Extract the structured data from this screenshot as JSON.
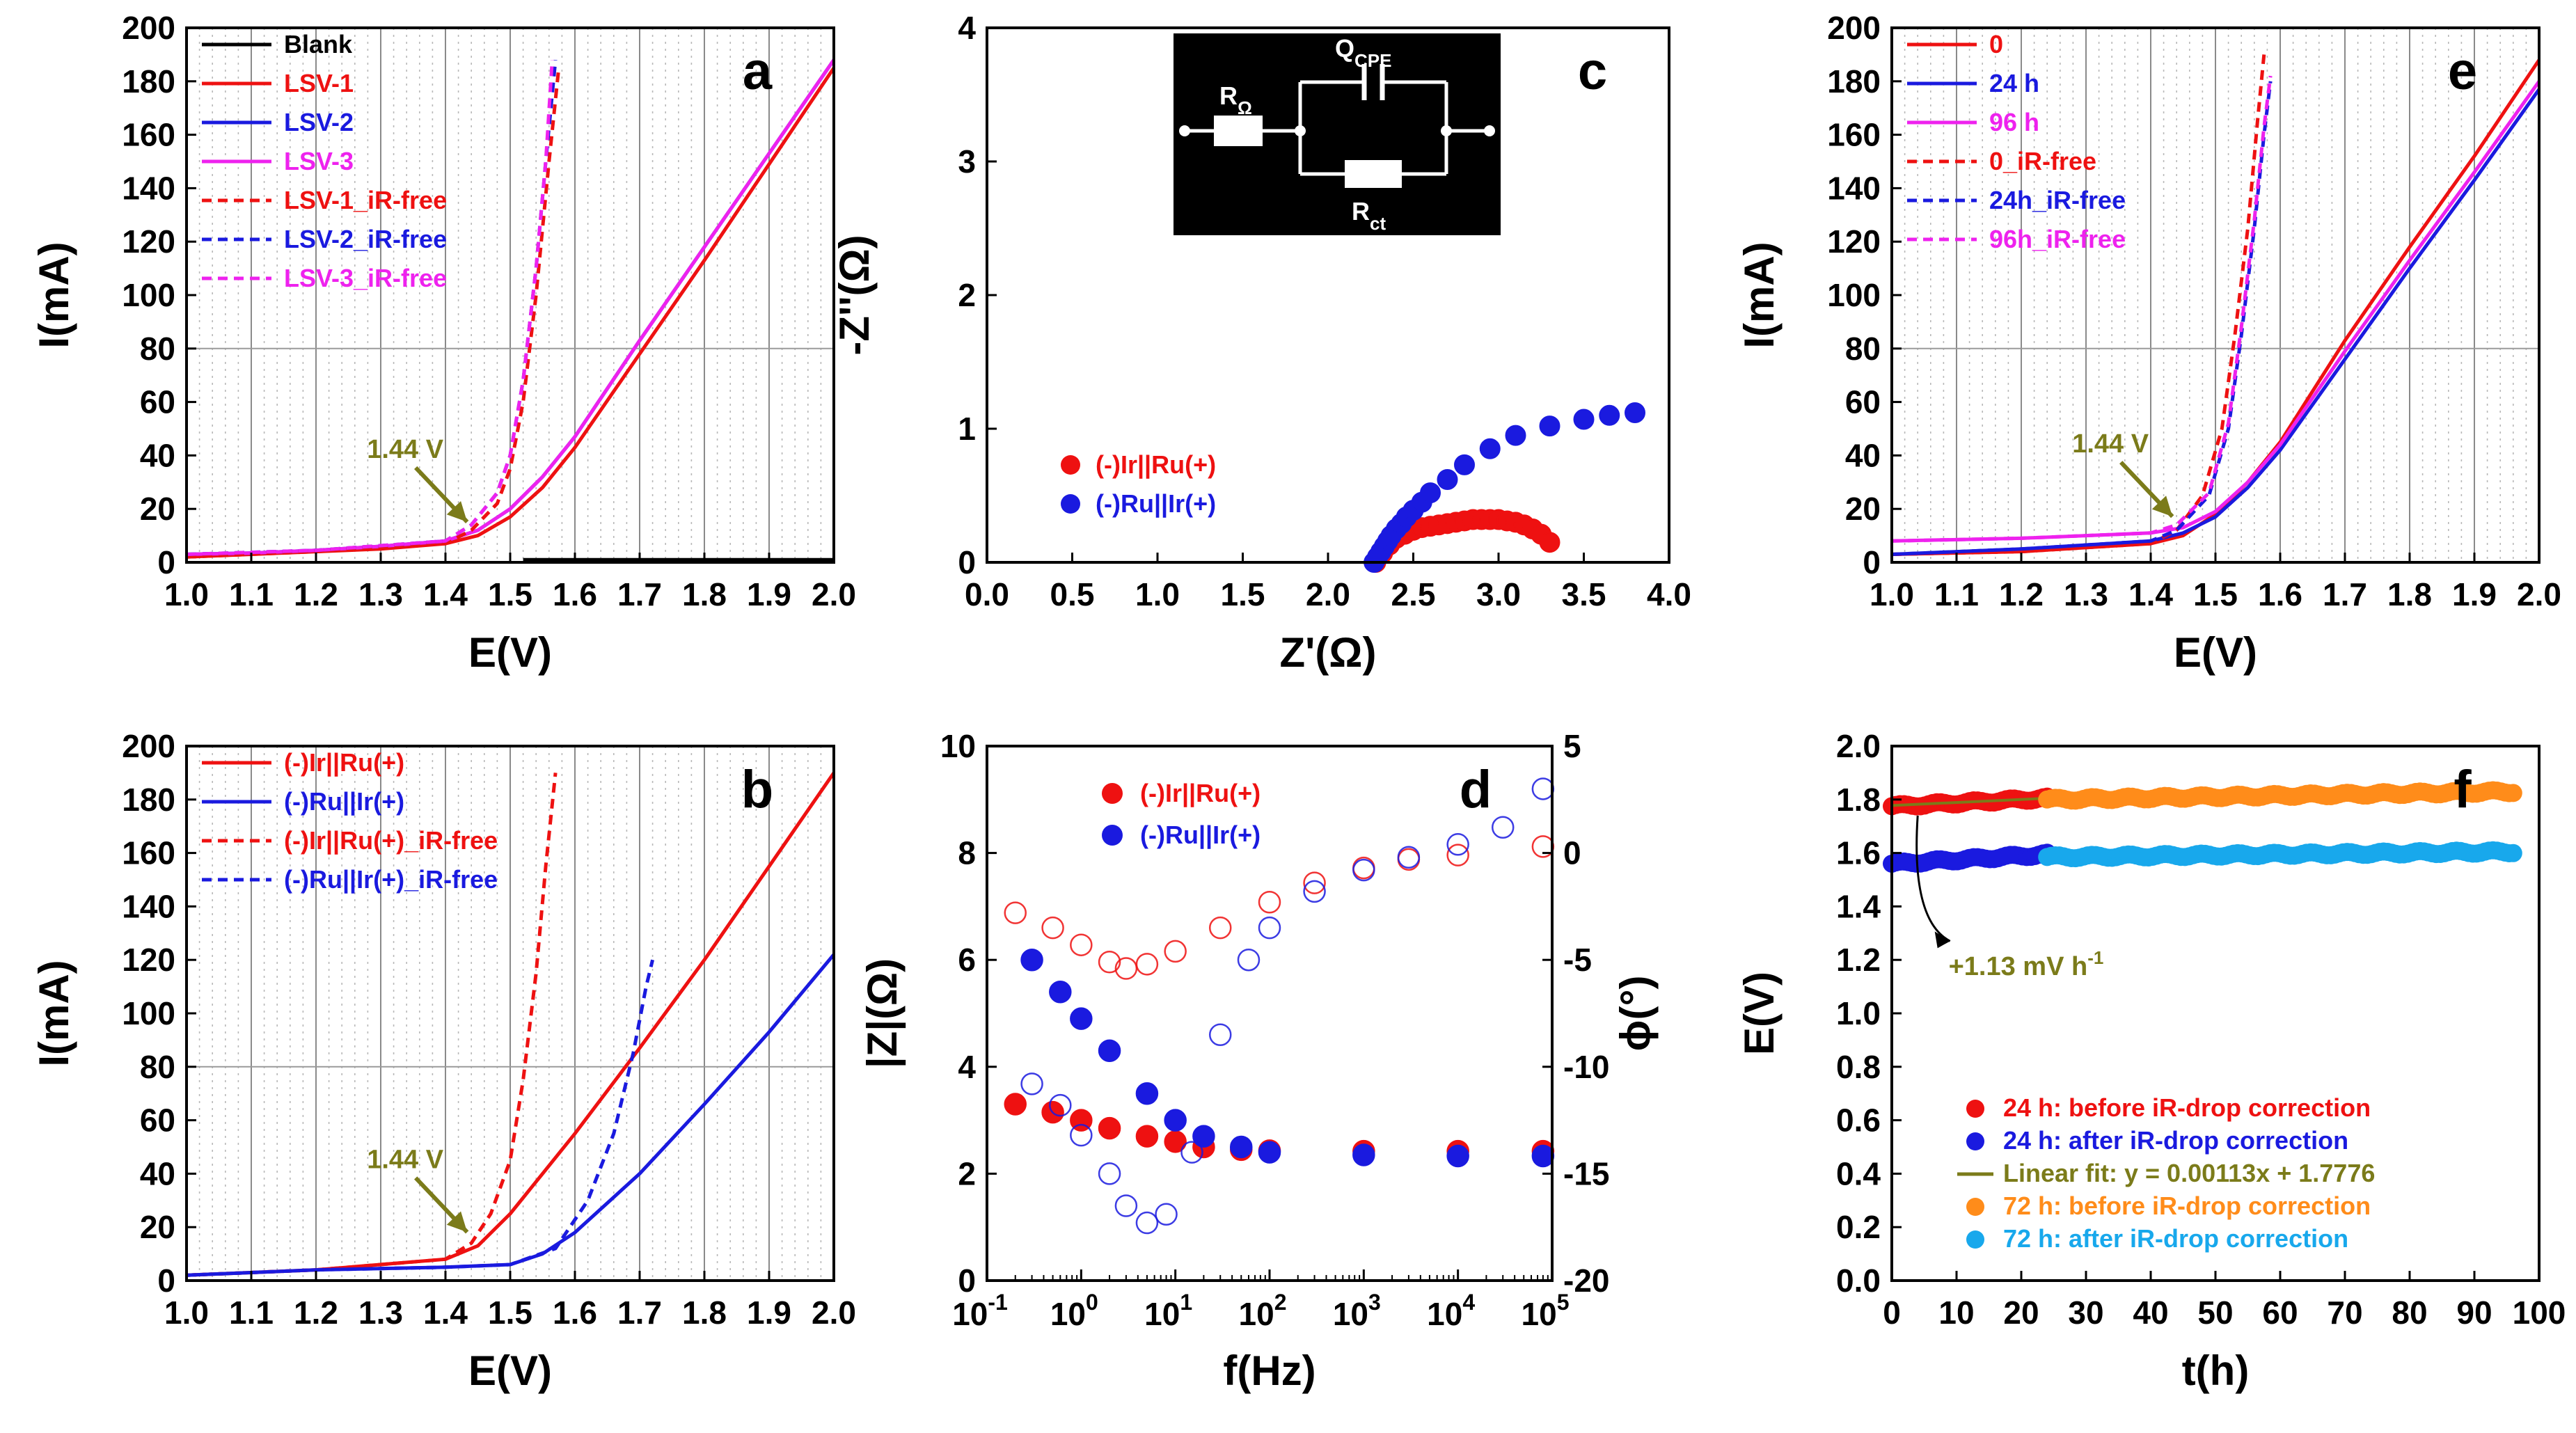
{
  "figure": "Six-panel electrochemistry figure (a-f)",
  "colors": {
    "red": "#ee1111",
    "blue": "#1a1adf",
    "magenta": "#ee22ee",
    "black": "#000000",
    "olive": "#7b7b1a",
    "orange": "#ff8c1a",
    "lightblue": "#18a8ec"
  },
  "chart_data": [
    {
      "id": "a",
      "type": "line",
      "panel_label": "a",
      "xlabel": "E(V)",
      "ylabel": "I(mA)",
      "xlim": [
        1.0,
        2.0
      ],
      "ylim": [
        0,
        200
      ],
      "xticks": [
        "1.0",
        "1.1",
        "1.2",
        "1.3",
        "1.4",
        "1.5",
        "1.6",
        "1.7",
        "1.8",
        "1.9",
        "2.0"
      ],
      "yticks": [
        "0",
        "20",
        "40",
        "60",
        "80",
        "100",
        "120",
        "140",
        "160",
        "180",
        "200"
      ],
      "legend_placement": "top-left",
      "annotation": {
        "text": "1.44 V",
        "x": 1.44,
        "y": 12
      },
      "series": [
        {
          "name": "Blank",
          "color": "#000000",
          "dash": false,
          "x": [
            1.52,
            2.0
          ],
          "y": [
            1,
            1
          ]
        },
        {
          "name": "LSV-1",
          "color": "#ee1111",
          "dash": false,
          "x": [
            1.0,
            1.1,
            1.2,
            1.3,
            1.4,
            1.45,
            1.5,
            1.55,
            1.6,
            1.7,
            1.8,
            1.9,
            2.0
          ],
          "y": [
            2,
            3,
            4,
            5,
            7,
            10,
            17,
            28,
            43,
            78,
            113,
            149,
            185
          ]
        },
        {
          "name": "LSV-2",
          "color": "#1a1adf",
          "dash": false,
          "x": [
            1.0,
            1.1,
            1.2,
            1.3,
            1.4,
            1.45,
            1.5,
            1.55,
            1.6,
            1.7,
            1.8,
            1.9,
            2.0
          ],
          "y": [
            3,
            3.5,
            4.5,
            6,
            8,
            12,
            20,
            32,
            47,
            83,
            118,
            153,
            188
          ]
        },
        {
          "name": "LSV-3",
          "color": "#ee22ee",
          "dash": false,
          "x": [
            1.0,
            1.1,
            1.2,
            1.3,
            1.4,
            1.45,
            1.5,
            1.55,
            1.6,
            1.7,
            1.8,
            1.9,
            2.0
          ],
          "y": [
            3,
            3.5,
            4.5,
            6,
            8,
            12,
            20,
            32,
            47,
            83,
            118,
            153,
            188
          ]
        },
        {
          "name": "LSV-1_iR-free",
          "color": "#ee1111",
          "dash": true,
          "x": [
            1.0,
            1.2,
            1.4,
            1.44,
            1.48,
            1.5,
            1.52,
            1.54,
            1.56,
            1.575
          ],
          "y": [
            2,
            4,
            7,
            12,
            22,
            35,
            60,
            100,
            150,
            185
          ]
        },
        {
          "name": "LSV-2_iR-free",
          "color": "#1a1adf",
          "dash": true,
          "x": [
            1.0,
            1.2,
            1.4,
            1.44,
            1.48,
            1.5,
            1.52,
            1.54,
            1.555,
            1.57
          ],
          "y": [
            3,
            4.5,
            8,
            14,
            26,
            40,
            68,
            110,
            150,
            188
          ]
        },
        {
          "name": "LSV-3_iR-free",
          "color": "#ee22ee",
          "dash": true,
          "x": [
            1.0,
            1.2,
            1.4,
            1.44,
            1.48,
            1.5,
            1.52,
            1.54,
            1.555,
            1.565
          ],
          "y": [
            3,
            4.5,
            8,
            14,
            26,
            40,
            68,
            110,
            150,
            188
          ]
        }
      ]
    },
    {
      "id": "b",
      "type": "line",
      "panel_label": "b",
      "xlabel": "E(V)",
      "ylabel": "I(mA)",
      "xlim": [
        1.0,
        2.0
      ],
      "ylim": [
        0,
        200
      ],
      "xticks": [
        "1.0",
        "1.1",
        "1.2",
        "1.3",
        "1.4",
        "1.5",
        "1.6",
        "1.7",
        "1.8",
        "1.9",
        "2.0"
      ],
      "yticks": [
        "0",
        "20",
        "40",
        "60",
        "80",
        "100",
        "120",
        "140",
        "160",
        "180",
        "200"
      ],
      "legend_placement": "top-left",
      "annotation": {
        "text": "1.44 V",
        "x": 1.44,
        "y": 15
      },
      "series": [
        {
          "name": "(-)Ir||Ru(+)",
          "color": "#ee1111",
          "dash": false,
          "x": [
            1.0,
            1.2,
            1.4,
            1.45,
            1.5,
            1.55,
            1.6,
            1.7,
            1.8,
            1.9,
            2.0
          ],
          "y": [
            2,
            4,
            8,
            13,
            25,
            40,
            55,
            87,
            120,
            155,
            190
          ]
        },
        {
          "name": "(-)Ru||Ir(+)",
          "color": "#1a1adf",
          "dash": false,
          "x": [
            1.0,
            1.2,
            1.4,
            1.5,
            1.55,
            1.6,
            1.7,
            1.8,
            1.9,
            2.0
          ],
          "y": [
            2,
            4,
            5,
            6,
            10,
            18,
            40,
            66,
            93,
            122
          ]
        },
        {
          "name": "(-)Ir||Ru(+)_iR-free",
          "color": "#ee1111",
          "dash": true,
          "x": [
            1.0,
            1.2,
            1.4,
            1.44,
            1.47,
            1.5,
            1.52,
            1.54,
            1.555,
            1.57
          ],
          "y": [
            2,
            4,
            8,
            14,
            25,
            45,
            75,
            115,
            155,
            190
          ]
        },
        {
          "name": "(-)Ru||Ir(+)_iR-free",
          "color": "#1a1adf",
          "dash": true,
          "x": [
            1.0,
            1.2,
            1.4,
            1.5,
            1.57,
            1.62,
            1.66,
            1.69,
            1.71,
            1.72
          ],
          "y": [
            2,
            4,
            5,
            6,
            12,
            30,
            55,
            85,
            110,
            120
          ]
        }
      ]
    },
    {
      "id": "c",
      "type": "scatter",
      "panel_label": "c",
      "xlabel": "Z'(Ω)",
      "ylabel": "-Z''(Ω)",
      "xlim": [
        0,
        4
      ],
      "ylim": [
        0,
        4
      ],
      "xticks": [
        "0.0",
        "0.5",
        "1.0",
        "1.5",
        "2.0",
        "2.5",
        "3.0",
        "3.5",
        "4.0"
      ],
      "yticks": [
        "0",
        "1",
        "2",
        "3",
        "4"
      ],
      "legend_placement": "center-left",
      "inset": {
        "elements": [
          "RΩ",
          "QCPE",
          "Rct"
        ],
        "labels": {
          "r_ohm": "R",
          "r_ohm_sub": "Ω",
          "q": "Q",
          "q_sub": "CPE",
          "rct": "R",
          "rct_sub": "ct"
        }
      },
      "series": [
        {
          "name": "(-)Ir||Ru(+)",
          "color": "#ee1111",
          "x": [
            2.28,
            2.32,
            2.36,
            2.4,
            2.45,
            2.5,
            2.55,
            2.6,
            2.65,
            2.7,
            2.75,
            2.8,
            2.85,
            2.9,
            2.95,
            3.0,
            3.05,
            3.1,
            3.15,
            3.2,
            3.25,
            3.3
          ],
          "y": [
            0.0,
            0.07,
            0.13,
            0.18,
            0.21,
            0.24,
            0.26,
            0.27,
            0.28,
            0.29,
            0.3,
            0.31,
            0.32,
            0.32,
            0.32,
            0.32,
            0.31,
            0.3,
            0.28,
            0.25,
            0.21,
            0.15
          ]
        },
        {
          "name": "(-)Ru||Ir(+)",
          "color": "#1a1adf",
          "x": [
            2.27,
            2.29,
            2.31,
            2.33,
            2.35,
            2.37,
            2.4,
            2.43,
            2.46,
            2.5,
            2.55,
            2.6,
            2.7,
            2.8,
            2.95,
            3.1,
            3.3,
            3.5,
            3.65,
            3.8
          ],
          "y": [
            0.0,
            0.04,
            0.08,
            0.12,
            0.16,
            0.2,
            0.25,
            0.29,
            0.34,
            0.39,
            0.45,
            0.52,
            0.62,
            0.73,
            0.85,
            0.95,
            1.02,
            1.07,
            1.1,
            1.12
          ]
        }
      ]
    },
    {
      "id": "d",
      "type": "scatter",
      "panel_label": "d",
      "xlabel": "f(Hz)",
      "ylabel": "|Z|(Ω)",
      "y2label": "ϕ(°)",
      "xscale": "log",
      "xlim": [
        0.1,
        100000
      ],
      "ylim": [
        0,
        10
      ],
      "y2lim": [
        -20,
        5
      ],
      "xticks": [
        "10",
        "10",
        "10",
        "10",
        "10",
        "10",
        "10"
      ],
      "xtick_exponents": [
        "-1",
        "0",
        "1",
        "2",
        "3",
        "4",
        "5"
      ],
      "yticks": [
        "0",
        "2",
        "4",
        "6",
        "8",
        "10"
      ],
      "y2ticks": [
        "-20",
        "-15",
        "-10",
        "-5",
        "0",
        "5"
      ],
      "legend_placement": "top-left",
      "series": [
        {
          "name": "(-)Ir||Ru(+) |Z|",
          "color": "#ee1111",
          "filled": true,
          "x": [
            0.2,
            0.5,
            1,
            2,
            5,
            10,
            20,
            50,
            100,
            1000,
            10000,
            80000
          ],
          "y": [
            3.3,
            3.15,
            3.0,
            2.85,
            2.7,
            2.6,
            2.5,
            2.45,
            2.43,
            2.42,
            2.42,
            2.42
          ]
        },
        {
          "name": "(-)Ru||Ir(+) |Z|",
          "color": "#1a1adf",
          "filled": true,
          "x": [
            0.3,
            0.6,
            1,
            2,
            5,
            10,
            20,
            50,
            100,
            1000,
            10000,
            80000
          ],
          "y": [
            6.0,
            5.4,
            4.9,
            4.3,
            3.5,
            3.0,
            2.7,
            2.5,
            2.4,
            2.35,
            2.33,
            2.33
          ]
        },
        {
          "name": "(-)Ir||Ru(+) phase",
          "color": "#ee1111",
          "filled": false,
          "x": [
            0.2,
            0.5,
            1,
            2,
            3,
            5,
            10,
            30,
            100,
            300,
            1000,
            3000,
            10000,
            80000
          ],
          "y": [
            -2.8,
            -3.5,
            -4.3,
            -5.1,
            -5.4,
            -5.2,
            -4.6,
            -3.5,
            -2.3,
            -1.4,
            -0.7,
            -0.3,
            -0.1,
            0.3
          ]
        },
        {
          "name": "(-)Ru||Ir(+) phase",
          "color": "#1a1adf",
          "filled": false,
          "x": [
            0.3,
            0.6,
            1,
            2,
            3,
            5,
            8,
            15,
            30,
            60,
            100,
            300,
            1000,
            3000,
            10000,
            30000,
            80000
          ],
          "y": [
            -10.8,
            -11.8,
            -13.2,
            -15.0,
            -16.5,
            -17.3,
            -16.9,
            -14.0,
            -8.5,
            -5.0,
            -3.5,
            -1.8,
            -0.8,
            -0.2,
            0.4,
            1.2,
            3.0
          ]
        }
      ]
    },
    {
      "id": "e",
      "type": "line",
      "panel_label": "e",
      "xlabel": "E(V)",
      "ylabel": "I(mA)",
      "xlim": [
        1.0,
        2.0
      ],
      "ylim": [
        0,
        200
      ],
      "xticks": [
        "1.0",
        "1.1",
        "1.2",
        "1.3",
        "1.4",
        "1.5",
        "1.6",
        "1.7",
        "1.8",
        "1.9",
        "2.0"
      ],
      "yticks": [
        "0",
        "20",
        "40",
        "60",
        "80",
        "100",
        "120",
        "140",
        "160",
        "180",
        "200"
      ],
      "legend_placement": "top-left",
      "annotation": {
        "text": "1.44 V",
        "x": 1.44,
        "y": 14
      },
      "series": [
        {
          "name": "0",
          "color": "#ee1111",
          "dash": false,
          "x": [
            1.0,
            1.2,
            1.4,
            1.45,
            1.5,
            1.55,
            1.6,
            1.7,
            1.8,
            1.9,
            2.0
          ],
          "y": [
            3,
            4,
            7,
            10,
            18,
            30,
            45,
            83,
            118,
            152,
            188
          ]
        },
        {
          "name": "24 h",
          "color": "#1a1adf",
          "dash": false,
          "x": [
            1.0,
            1.2,
            1.4,
            1.45,
            1.5,
            1.55,
            1.6,
            1.7,
            1.8,
            1.9,
            2.0
          ],
          "y": [
            3,
            5,
            8,
            11,
            17,
            28,
            42,
            76,
            110,
            143,
            177
          ]
        },
        {
          "name": "96 h",
          "color": "#ee22ee",
          "dash": false,
          "x": [
            1.0,
            1.2,
            1.4,
            1.45,
            1.5,
            1.55,
            1.6,
            1.7,
            1.8,
            1.9,
            2.0
          ],
          "y": [
            8,
            9,
            11,
            13,
            19,
            30,
            44,
            79,
            113,
            146,
            180
          ]
        },
        {
          "name": "0_iR-free",
          "color": "#ee1111",
          "dash": true,
          "x": [
            1.0,
            1.2,
            1.4,
            1.44,
            1.48,
            1.51,
            1.53,
            1.55,
            1.565,
            1.575
          ],
          "y": [
            3,
            4,
            7,
            12,
            25,
            50,
            85,
            125,
            165,
            190
          ]
        },
        {
          "name": "24h_iR-free",
          "color": "#1a1adf",
          "dash": true,
          "x": [
            1.0,
            1.2,
            1.4,
            1.44,
            1.49,
            1.52,
            1.54,
            1.56,
            1.575,
            1.585
          ],
          "y": [
            3,
            5,
            8,
            12,
            25,
            50,
            85,
            125,
            160,
            180
          ]
        },
        {
          "name": "96h_iR-free",
          "color": "#ee22ee",
          "dash": true,
          "x": [
            1.0,
            1.2,
            1.4,
            1.44,
            1.49,
            1.52,
            1.54,
            1.56,
            1.575,
            1.585
          ],
          "y": [
            8,
            9,
            11,
            14,
            26,
            52,
            88,
            128,
            163,
            182
          ]
        }
      ]
    },
    {
      "id": "f",
      "type": "scatter",
      "panel_label": "f",
      "xlabel": "t(h)",
      "ylabel": "E(V)",
      "xlim": [
        0,
        100
      ],
      "ylim": [
        0,
        2.0
      ],
      "xticks": [
        "0",
        "10",
        "20",
        "30",
        "40",
        "50",
        "60",
        "70",
        "80",
        "90",
        "100"
      ],
      "yticks": [
        "0.0",
        "0.2",
        "0.4",
        "0.6",
        "0.8",
        "1.0",
        "1.2",
        "1.4",
        "1.6",
        "1.8",
        "2.0"
      ],
      "legend_placement": "bottom-left",
      "annotation": {
        "text": "+1.13 mV h",
        "superscript": "-1",
        "x": 12,
        "y": 1.18
      },
      "series": [
        {
          "name": "24 h: before iR-drop correction",
          "color": "#ee1111",
          "x_start": 0,
          "x_end": 24,
          "y_start": 1.775,
          "y_end": 1.805
        },
        {
          "name": "24 h: after iR-drop correction",
          "color": "#1a1adf",
          "x_start": 0,
          "x_end": 24,
          "y_start": 1.56,
          "y_end": 1.595
        },
        {
          "name": "Linear fit: y = 0.00113x + 1.7776",
          "color": "#7b7b1a",
          "slope": 0.00113,
          "intercept": 1.7776,
          "x_start": 0,
          "x_end": 24
        },
        {
          "name": "72 h: before iR-drop correction",
          "color": "#ff8c1a",
          "x_start": 24,
          "x_end": 96,
          "y_start": 1.8,
          "y_end": 1.83
        },
        {
          "name": "72 h: after iR-drop correction",
          "color": "#18a8ec",
          "x_start": 24,
          "x_end": 96,
          "y_start": 1.585,
          "y_end": 1.605
        }
      ]
    }
  ]
}
